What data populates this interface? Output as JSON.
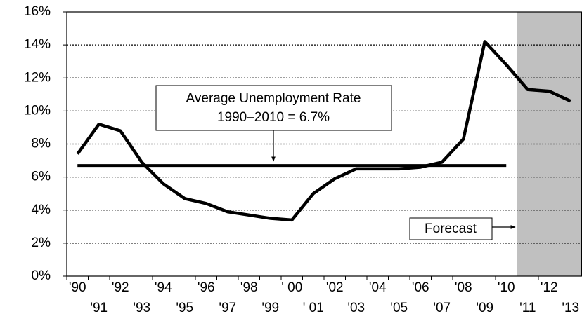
{
  "chart_data": {
    "type": "line",
    "categories": [
      "'90",
      "'91",
      "'92",
      "'93",
      "'94",
      "'95",
      "'96",
      "'97",
      "'98",
      "'99",
      "' 00",
      "' 01",
      "'02",
      "'03",
      "'04",
      "'05",
      "'06",
      "'07",
      "'08",
      "'09",
      "'10",
      "'11",
      "'12",
      "'13"
    ],
    "series": [
      {
        "color": "#000000",
        "values": [
          7.4,
          9.2,
          8.8,
          6.9,
          5.6,
          4.7,
          4.4,
          3.9,
          3.7,
          3.5,
          3.4,
          5.0,
          5.9,
          6.5,
          6.5,
          6.5,
          6.6,
          6.9,
          8.3,
          14.2,
          12.8,
          11.3,
          11.2,
          10.6
        ]
      }
    ],
    "ylim": [
      0,
      16
    ],
    "yticks": [
      {
        "value": 0,
        "label": "0%"
      },
      {
        "value": 2,
        "label": "2%"
      },
      {
        "value": 4,
        "label": "4%"
      },
      {
        "value": 6,
        "label": "6%"
      },
      {
        "value": 8,
        "label": "8%"
      },
      {
        "value": 10,
        "label": "10%"
      },
      {
        "value": 12,
        "label": "12%"
      },
      {
        "value": 14,
        "label": "14%"
      },
      {
        "value": 16,
        "label": "16%"
      }
    ],
    "grid": true,
    "average": {
      "value": 6.7,
      "label": [
        "Average Unemployment Rate",
        "1990–2010 = 6.7%"
      ]
    },
    "annotation": "Forecast"
  }
}
